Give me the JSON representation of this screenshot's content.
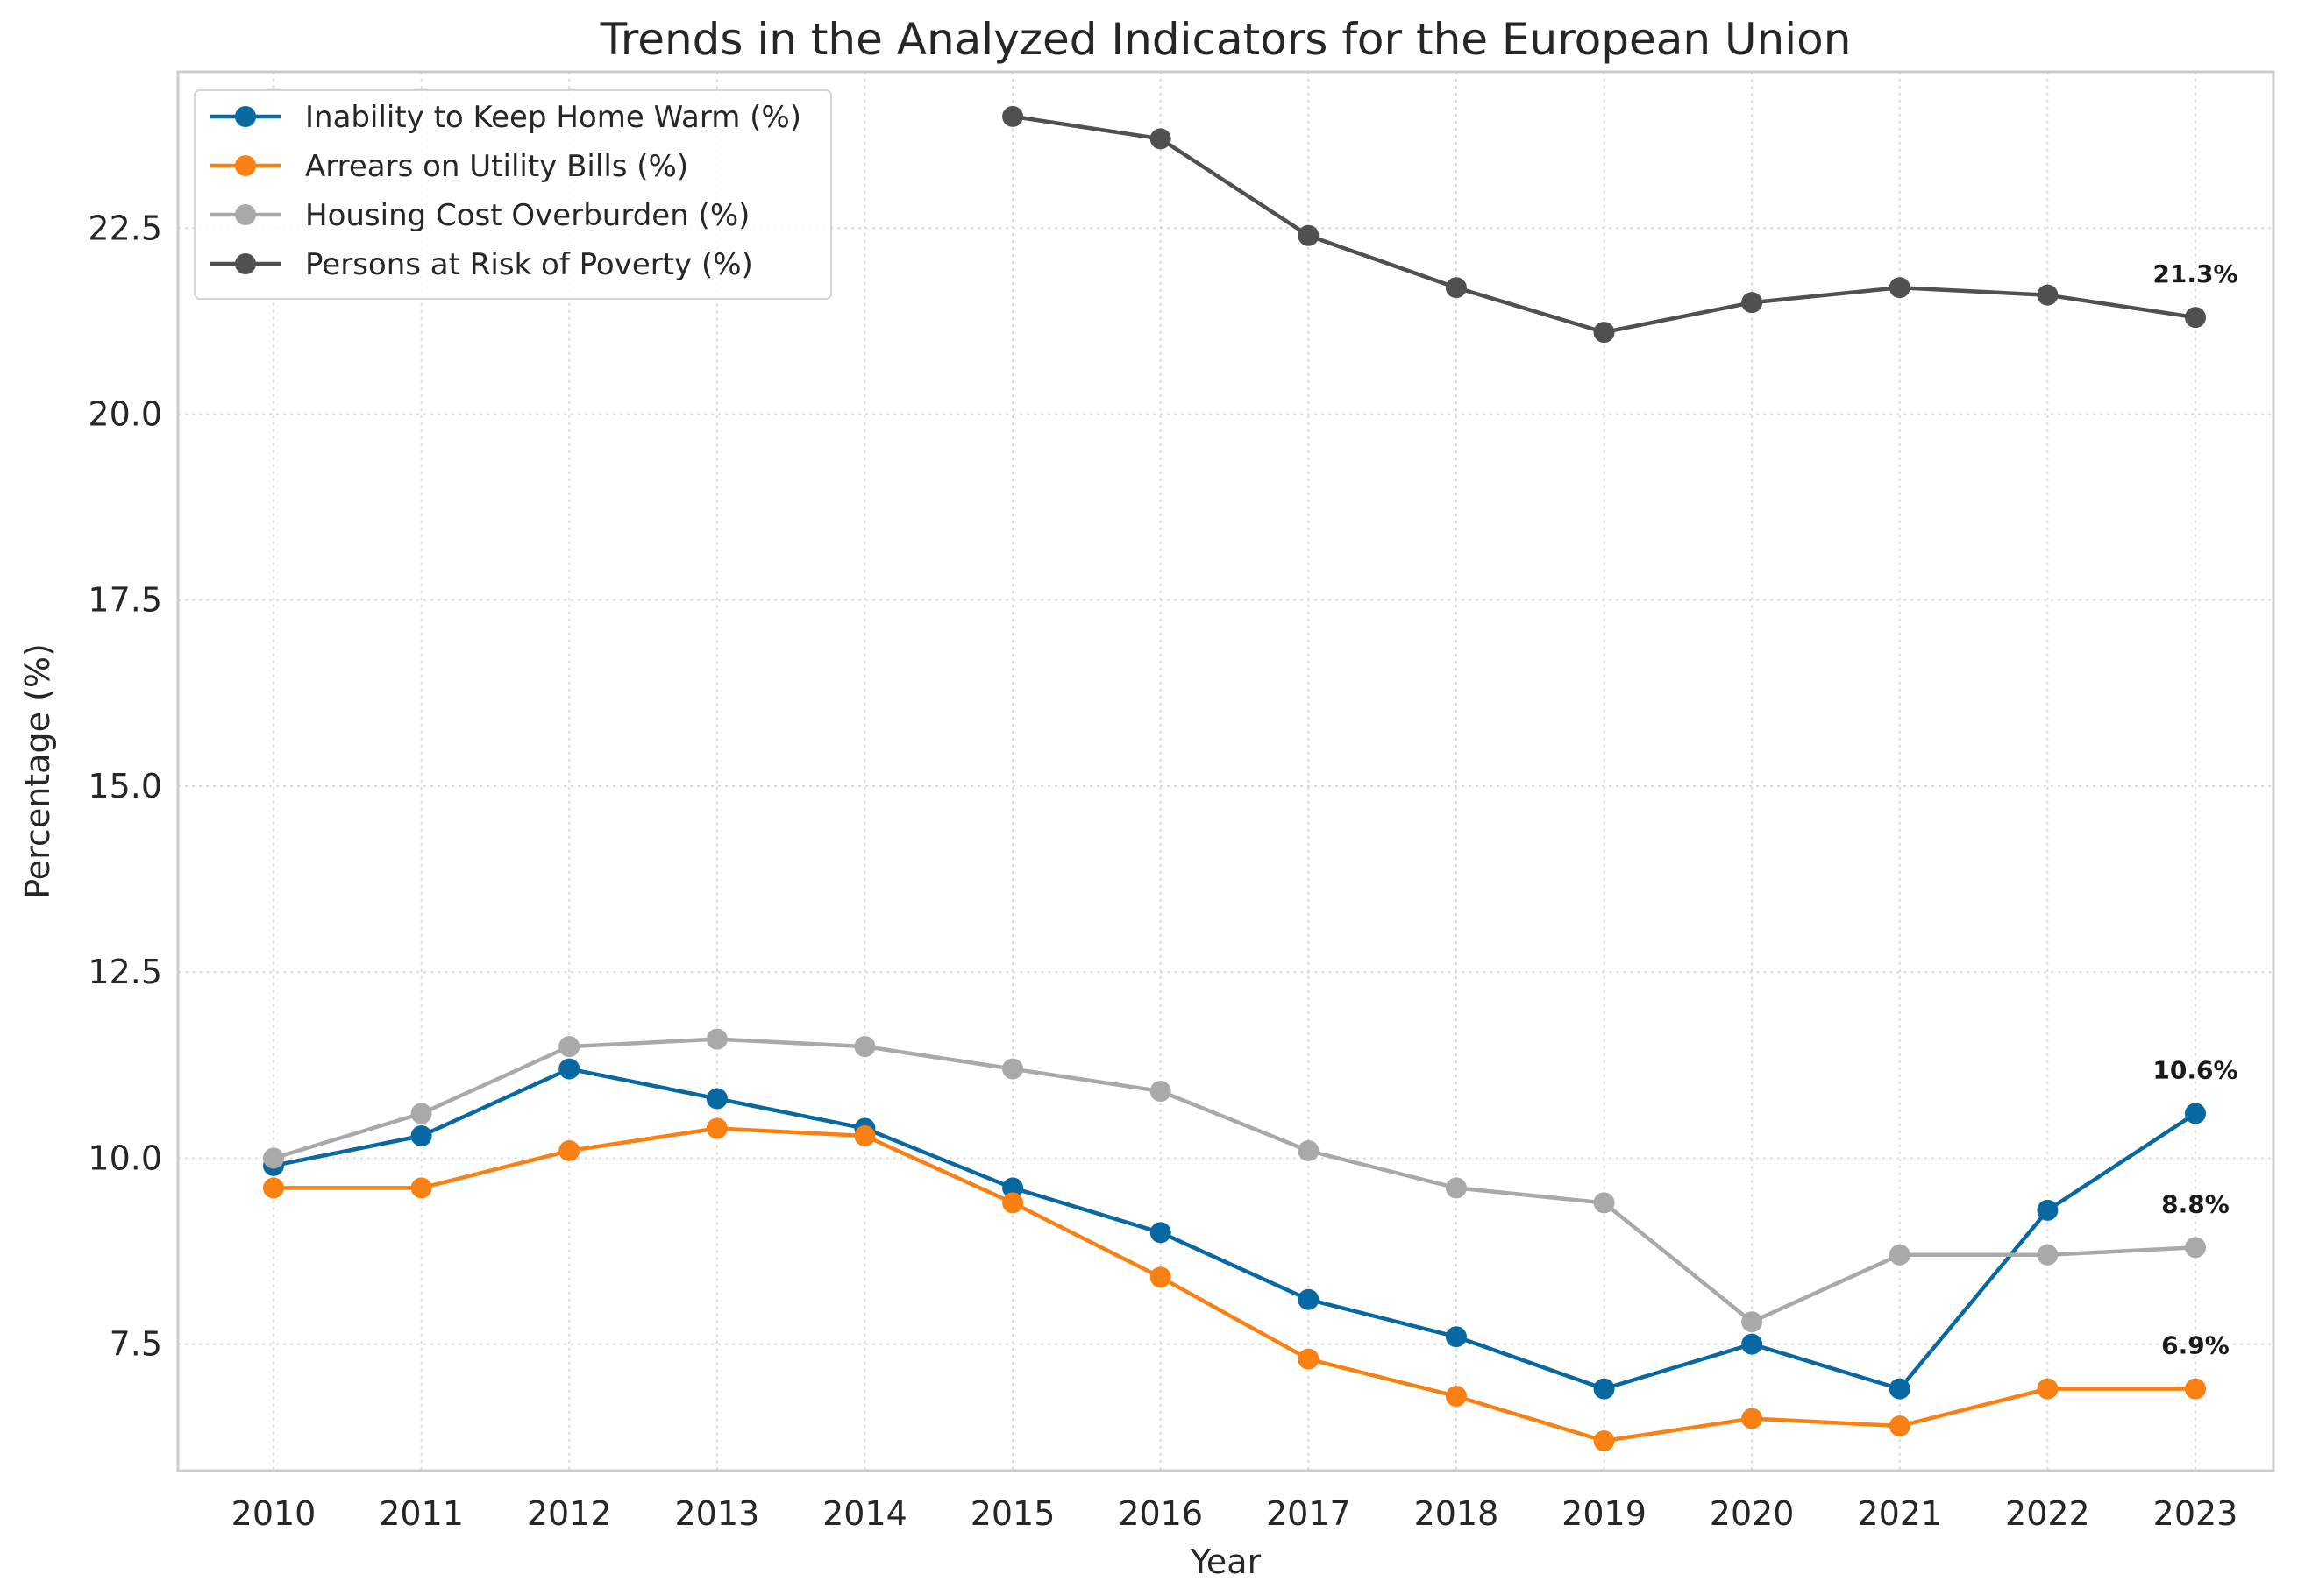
{
  "chart_data": {
    "type": "line",
    "title": "Trends in the Analyzed Indicators for the European Union",
    "xlabel": "Year",
    "ylabel": "Percentage (%)",
    "x": [
      2010,
      2011,
      2012,
      2013,
      2014,
      2015,
      2016,
      2017,
      2018,
      2019,
      2020,
      2021,
      2022,
      2023
    ],
    "ylim": [
      5.8,
      24.6
    ],
    "yticks": [
      7.5,
      10.0,
      12.5,
      15.0,
      17.5,
      20.0,
      22.5
    ],
    "ytick_labels": [
      "7.5",
      "10.0",
      "12.5",
      "15.0",
      "17.5",
      "20.0",
      "22.5"
    ],
    "grid": true,
    "legend_position": "top-left",
    "series": [
      {
        "name": "Inability to Keep Home Warm (%)",
        "color": "#0868a1",
        "values": [
          9.9,
          10.3,
          11.2,
          10.8,
          10.4,
          9.6,
          9.0,
          8.1,
          7.6,
          6.9,
          7.5,
          6.9,
          9.3,
          10.6
        ],
        "end_label": "10.6%"
      },
      {
        "name": "Arrears on Utility Bills (%)",
        "color": "#f98113",
        "values": [
          9.6,
          9.6,
          10.1,
          10.4,
          10.3,
          9.4,
          8.4,
          7.3,
          6.8,
          6.2,
          6.5,
          6.4,
          6.9,
          6.9
        ],
        "end_label": "6.9%"
      },
      {
        "name": "Housing Cost Overburden (%)",
        "color": "#a9a9a9",
        "values": [
          10.0,
          10.6,
          11.5,
          11.6,
          11.5,
          11.2,
          10.9,
          10.1,
          9.6,
          9.4,
          7.8,
          8.7,
          8.7,
          8.8
        ],
        "end_label": "8.8%"
      },
      {
        "name": "Persons at Risk of Poverty (%)",
        "color": "#505050",
        "values": [
          null,
          null,
          null,
          null,
          null,
          24.0,
          23.7,
          22.4,
          21.7,
          21.1,
          21.5,
          21.7,
          21.6,
          21.3
        ],
        "end_label": "21.3%"
      }
    ]
  }
}
